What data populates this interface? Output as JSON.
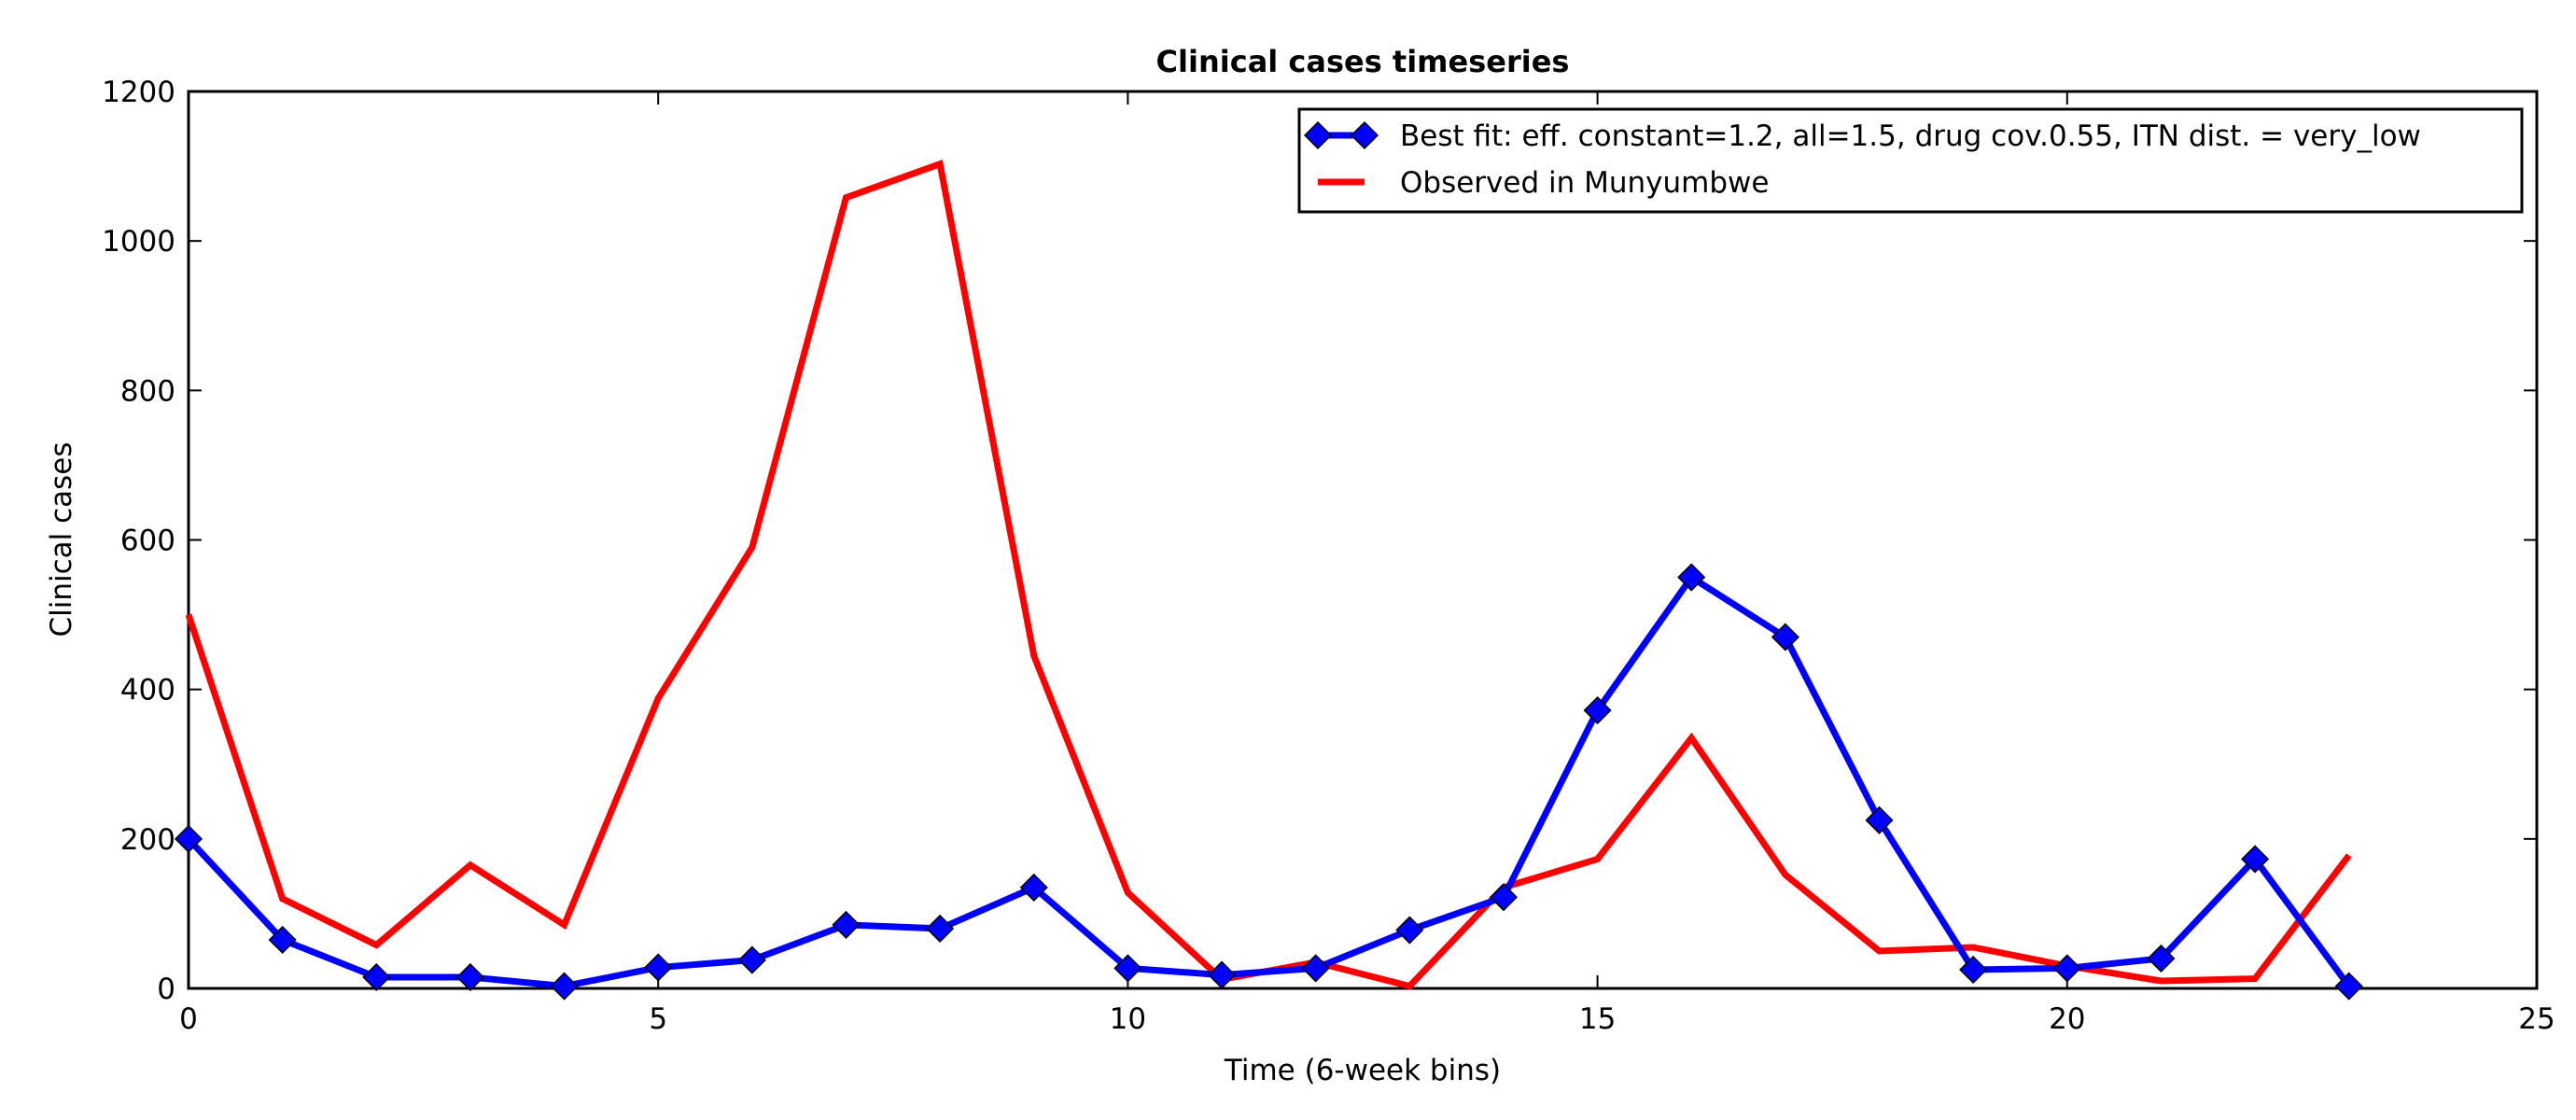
{
  "chart_data": {
    "type": "line",
    "title": "Clinical cases timeseries",
    "xlabel": "Time (6-week bins)",
    "ylabel": "Clinical cases",
    "xlim": [
      0,
      25
    ],
    "ylim": [
      0,
      1200
    ],
    "xticks": [
      0,
      5,
      10,
      15,
      20,
      25
    ],
    "yticks": [
      0,
      200,
      400,
      600,
      800,
      1000,
      1200
    ],
    "grid": false,
    "legend_position": "top-right",
    "x": [
      0,
      1,
      2,
      3,
      4,
      5,
      6,
      7,
      8,
      9,
      10,
      11,
      12,
      13,
      14,
      15,
      16,
      17,
      18,
      19,
      20,
      21,
      22,
      23
    ],
    "series": [
      {
        "name": "Best fit: eff. constant=1.2, all=1.5, drug cov.0.55, ITN dist. = very_low",
        "color": "#0000ff",
        "marker": "diamond",
        "values": [
          200,
          65,
          15,
          15,
          3,
          28,
          38,
          85,
          80,
          135,
          27,
          18,
          27,
          78,
          122,
          372,
          550,
          470,
          225,
          25,
          27,
          40,
          173,
          3
        ]
      },
      {
        "name": "Observed in Munyumbwe",
        "color": "#ff0000",
        "marker": "none",
        "values": [
          500,
          120,
          58,
          165,
          85,
          388,
          590,
          1058,
          1103,
          445,
          128,
          12,
          35,
          3,
          135,
          173,
          335,
          152,
          50,
          55,
          30,
          10,
          13,
          178
        ]
      }
    ]
  }
}
